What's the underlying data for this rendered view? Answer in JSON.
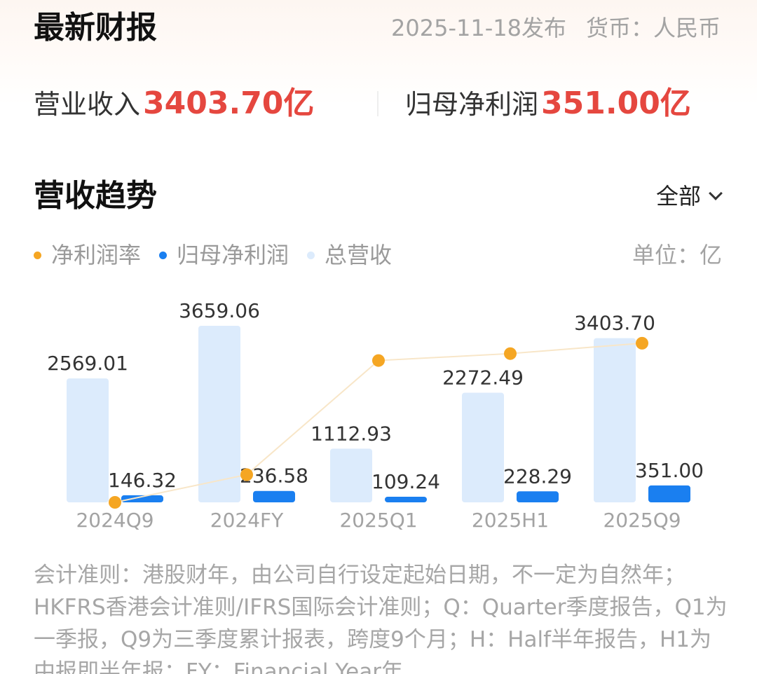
{
  "report": {
    "title": "最新财报",
    "release_date": "2025-11-18发布",
    "currency": "货币：人民币"
  },
  "metrics": {
    "revenue_label": "营业收入",
    "revenue_value": "3403.70亿",
    "profit_label": "归母净利润",
    "profit_value": "351.00亿"
  },
  "trend": {
    "title": "营收趋势",
    "filter_label": "全部",
    "unit": "单位：亿",
    "legend": [
      {
        "label": "净利润率",
        "color": "#f5a623"
      },
      {
        "label": "归母净利润",
        "color": "#1a7ff0"
      },
      {
        "label": "总营收",
        "color": "#dcebfc"
      }
    ]
  },
  "chart_data": {
    "type": "bar",
    "categories": [
      "2024Q9",
      "2024FY",
      "2025Q1",
      "2025H1",
      "2025Q9"
    ],
    "series": [
      {
        "name": "总营收",
        "type": "bar",
        "color": "#dcebfc",
        "values": [
          2569.01,
          3659.06,
          1112.93,
          2272.49,
          3403.7
        ],
        "labels": [
          "2569.01",
          "3659.06",
          "1112.93",
          "2272.49",
          "3403.70"
        ]
      },
      {
        "name": "归母净利润",
        "type": "bar",
        "color": "#1a7ff0",
        "values": [
          146.32,
          236.58,
          109.24,
          228.29,
          351.0
        ],
        "labels": [
          "146.32",
          "236.58",
          "109.24",
          "228.29",
          "351.00"
        ]
      },
      {
        "name": "净利润率",
        "type": "line",
        "color": "#f5a623",
        "values": [
          5.7,
          6.5,
          9.8,
          10.0,
          10.3
        ]
      }
    ],
    "ylim": [
      0,
      3659.06
    ],
    "line_ylim": [
      5.7,
      10.5
    ],
    "legend_position": "top-left",
    "grid": false
  },
  "footnote": "会计准则：港股财年，由公司自行设定起始日期，不一定为自然年；HKFRS香港会计准则/IFRS国际会计准则；Q：Quarter季度报告，Q1为一季报，Q9为三季度累计报表，跨度9个月；H：Half半年报告，H1为中报即半年报；FY：Financial Year年"
}
